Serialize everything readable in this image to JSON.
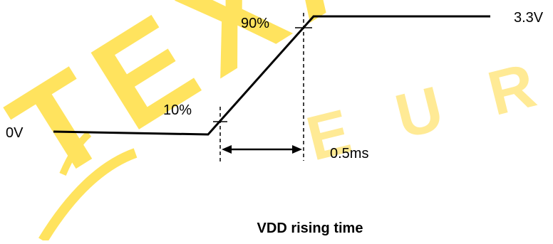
{
  "watermark": {
    "primary": "TEXAS",
    "secondary": "EUR",
    "color": "#FFE14D"
  },
  "diagram": {
    "caption": "VDD rising time",
    "labels": {
      "low_level": "0V",
      "high_level": "3.3V",
      "ten_percent": "10%",
      "ninety_percent": "90%",
      "interval": "0.5ms"
    },
    "colors": {
      "line": "#000000",
      "text": "#000000"
    }
  }
}
